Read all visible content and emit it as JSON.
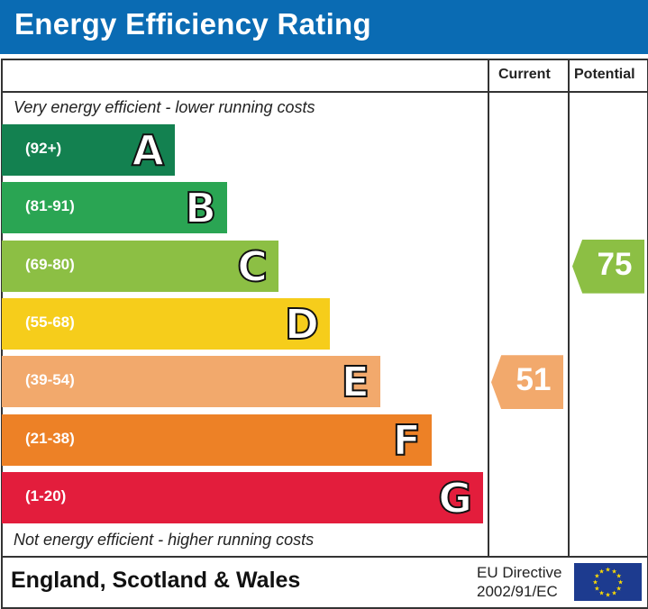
{
  "title": "Energy Efficiency Rating",
  "columns": {
    "current": "Current",
    "potential": "Potential"
  },
  "top_note": "Very energy efficient - lower running costs",
  "bottom_note": "Not energy efficient - higher running costs",
  "footer": {
    "country": "England, Scotland & Wales",
    "directive_line1": "EU Directive",
    "directive_line2": "2002/91/EC",
    "flag_icon": "eu-flag-icon"
  },
  "chart_data": {
    "type": "bar",
    "title": "Energy Efficiency Rating",
    "categories": [
      "A",
      "B",
      "C",
      "D",
      "E",
      "F",
      "G"
    ],
    "ranges": [
      "(92+)",
      "(81-91)",
      "(69-80)",
      "(55-68)",
      "(39-54)",
      "(21-38)",
      "(1-20)"
    ],
    "colors": [
      "#138150",
      "#2aa553",
      "#8cbf44",
      "#f6cd1b",
      "#f2a96c",
      "#ed8126",
      "#e31d3c"
    ],
    "current": {
      "label": "Current",
      "value": 51,
      "band": "E",
      "color": "#f2a96c"
    },
    "potential": {
      "label": "Potential",
      "value": 75,
      "band": "C",
      "color": "#8cbf44"
    }
  }
}
